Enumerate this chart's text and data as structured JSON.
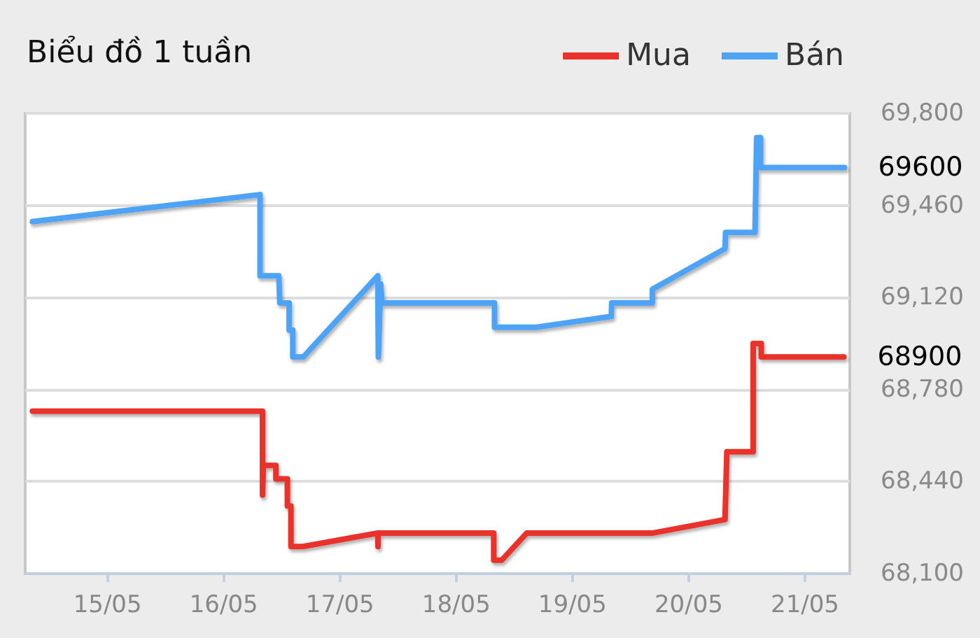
{
  "chart_data": {
    "type": "line",
    "title": "Biểu đồ 1 tuần",
    "legend": "top right",
    "grid": "y",
    "marker": "none",
    "line_style": "solid",
    "xlim": [
      "--05-14T07:00",
      "--05-21T09:15"
    ],
    "xticks": [
      {
        "value": "--05-15",
        "label": "15/05"
      },
      {
        "value": "--05-16",
        "label": "16/05"
      },
      {
        "value": "--05-17",
        "label": "17/05"
      },
      {
        "value": "--05-18",
        "label": "18/05"
      },
      {
        "value": "--05-19",
        "label": "19/05"
      },
      {
        "value": "--05-20",
        "label": "20/05"
      },
      {
        "value": "--05-21",
        "label": "21/05"
      }
    ],
    "ylim": [
      68100,
      69800
    ],
    "yticks": [
      {
        "value": 68100,
        "label": "68,100"
      },
      {
        "value": 68440,
        "label": "68,440"
      },
      {
        "value": 68780,
        "label": "68,780"
      },
      {
        "value": 69120,
        "label": "69,120"
      },
      {
        "value": 69460,
        "label": "69,460"
      },
      {
        "value": 69800,
        "label": "69,800"
      }
    ],
    "series": [
      {
        "name": "Mua",
        "color": "#e8312a",
        "x": [
          "--05-14T08:30",
          "--05-16T08:00",
          "--05-16T08:00",
          "--05-16T08:10",
          "--05-16T10:46",
          "--05-16T10:46",
          "--05-16T13:08",
          "--05-16T13:08",
          "--05-16T13:52",
          "--05-16T13:52",
          "--05-16T16:20",
          "--05-17T07:48",
          "--05-17T07:50",
          "--05-17T07:55",
          "--05-18T07:44",
          "--05-18T07:44",
          "--05-18T09:24",
          "--05-18T14:33",
          "--05-19T16:38",
          "--05-20T07:29",
          "--05-20T07:52",
          "--05-20T13:18",
          "--05-20T13:18",
          "--05-20T14:58",
          "--05-20T14:58",
          "--05-21T08:01"
        ],
        "values": [
          68700,
          68700,
          68390,
          68500,
          68500,
          68450,
          68450,
          68350,
          68350,
          68200,
          68200,
          68250,
          68200,
          68250,
          68250,
          68150,
          68150,
          68250,
          68250,
          68300,
          68550,
          68550,
          68950,
          68950,
          68900,
          68900
        ],
        "value_labels": [
          null,
          null,
          null,
          null,
          null,
          null,
          null,
          null,
          null,
          null,
          null,
          null,
          null,
          null,
          null,
          null,
          null,
          null,
          null,
          null,
          null,
          null,
          null,
          null,
          null,
          "68900"
        ]
      },
      {
        "name": "Bán",
        "color": "#4ea3f5",
        "x": [
          "--05-14T08:30",
          "--05-16T07:30",
          "--05-16T07:30",
          "--05-16T11:22",
          "--05-16T11:34",
          "--05-16T13:30",
          "--05-16T13:30",
          "--05-16T14:15",
          "--05-16T14:15",
          "--05-16T16:24",
          "--05-17T07:48",
          "--05-17T07:55",
          "--05-17T08:23",
          "--05-17T08:40",
          "--05-18T07:54",
          "--05-18T07:54",
          "--05-18T16:34",
          "--05-19T08:01",
          "--05-19T08:05",
          "--05-19T16:29",
          "--05-19T16:29",
          "--05-20T07:29",
          "--05-20T07:36",
          "--05-20T13:41",
          "--05-20T14:01",
          "--05-20T14:50",
          "--05-20T14:50",
          "--05-21T08:11"
        ],
        "values": [
          69400,
          69500,
          69200,
          69200,
          69100,
          69100,
          69000,
          69000,
          68900,
          68900,
          69200,
          68900,
          69170,
          69100,
          69100,
          69010,
          69010,
          69050,
          69100,
          69100,
          69150,
          69300,
          69360,
          69360,
          69710,
          69710,
          69600,
          69600
        ],
        "value_labels": [
          null,
          null,
          null,
          null,
          null,
          null,
          null,
          null,
          null,
          null,
          null,
          null,
          null,
          null,
          null,
          null,
          null,
          null,
          null,
          null,
          null,
          null,
          null,
          null,
          null,
          null,
          null,
          "69600"
        ]
      }
    ]
  }
}
